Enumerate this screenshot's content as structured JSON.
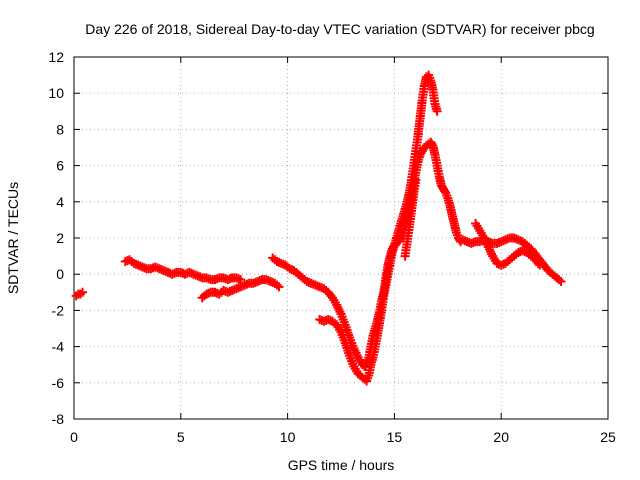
{
  "chart_data": {
    "type": "scatter",
    "title": "Day 226 of 2018, Sidereal Day-to-day VTEC variation (SDTVAR) for receiver pbcg",
    "xlabel": "GPS time / hours",
    "ylabel": "SDTVAR / TECUs",
    "xlim": [
      0,
      25
    ],
    "ylim": [
      -8,
      12
    ],
    "xticks": [
      "0",
      "5",
      "10",
      "15",
      "20",
      "25"
    ],
    "yticks": [
      "-8",
      "-6",
      "-4",
      "-2",
      "0",
      "2",
      "4",
      "6",
      "8",
      "10",
      "12"
    ],
    "grid": true,
    "marker": "plus",
    "series": [
      {
        "name": "pbcg",
        "color": "#ff0000",
        "segments": [
          [
            [
              0.1,
              -1.2
            ],
            [
              0.2,
              -1.1
            ],
            [
              0.3,
              -1.1
            ],
            [
              0.4,
              -1.0
            ]
          ],
          [
            [
              2.4,
              0.7
            ],
            [
              2.6,
              0.8
            ],
            [
              2.8,
              0.6
            ],
            [
              3.0,
              0.5
            ],
            [
              3.2,
              0.4
            ],
            [
              3.4,
              0.3
            ],
            [
              3.6,
              0.3
            ],
            [
              3.8,
              0.4
            ],
            [
              4.0,
              0.3
            ],
            [
              4.2,
              0.2
            ],
            [
              4.4,
              0.1
            ],
            [
              4.6,
              0.0
            ],
            [
              4.8,
              0.1
            ],
            [
              5.0,
              0.1
            ],
            [
              5.2,
              0.0
            ],
            [
              5.4,
              0.1
            ],
            [
              5.6,
              0.0
            ],
            [
              5.8,
              -0.1
            ],
            [
              6.0,
              -0.2
            ],
            [
              6.2,
              -0.2
            ],
            [
              6.4,
              -0.3
            ],
            [
              6.6,
              -0.3
            ],
            [
              6.8,
              -0.2
            ],
            [
              7.0,
              -0.2
            ],
            [
              7.2,
              -0.3
            ],
            [
              7.4,
              -0.2
            ],
            [
              7.6,
              -0.2
            ],
            [
              7.8,
              -0.3
            ]
          ],
          [
            [
              6.0,
              -1.3
            ],
            [
              6.2,
              -1.1
            ],
            [
              6.4,
              -1.0
            ],
            [
              6.6,
              -1.0
            ],
            [
              6.8,
              -1.1
            ],
            [
              7.0,
              -0.9
            ],
            [
              7.2,
              -1.0
            ],
            [
              7.4,
              -0.9
            ],
            [
              7.6,
              -0.8
            ],
            [
              7.8,
              -0.7
            ],
            [
              8.0,
              -0.6
            ],
            [
              8.2,
              -0.5
            ],
            [
              8.4,
              -0.5
            ],
            [
              8.6,
              -0.4
            ],
            [
              8.8,
              -0.3
            ],
            [
              9.0,
              -0.3
            ],
            [
              9.2,
              -0.4
            ],
            [
              9.4,
              -0.5
            ],
            [
              9.6,
              -0.7
            ]
          ],
          [
            [
              9.3,
              0.9
            ],
            [
              9.5,
              0.7
            ],
            [
              9.7,
              0.6
            ],
            [
              9.9,
              0.5
            ],
            [
              10.1,
              0.3
            ],
            [
              10.3,
              0.2
            ],
            [
              10.5,
              0.0
            ],
            [
              10.7,
              -0.2
            ],
            [
              10.9,
              -0.4
            ],
            [
              11.1,
              -0.5
            ],
            [
              11.3,
              -0.6
            ],
            [
              11.5,
              -0.7
            ],
            [
              11.7,
              -0.8
            ],
            [
              11.9,
              -1.0
            ],
            [
              12.1,
              -1.3
            ],
            [
              12.3,
              -1.7
            ],
            [
              12.5,
              -2.2
            ],
            [
              12.7,
              -2.8
            ],
            [
              12.9,
              -3.5
            ],
            [
              13.1,
              -4.1
            ],
            [
              13.3,
              -4.6
            ],
            [
              13.5,
              -5.0
            ],
            [
              13.6,
              -5.1
            ],
            [
              13.7,
              -4.9
            ],
            [
              13.8,
              -4.6
            ],
            [
              13.9,
              -4.0
            ],
            [
              14.0,
              -3.4
            ],
            [
              14.1,
              -3.0
            ],
            [
              14.2,
              -2.6
            ],
            [
              14.3,
              -2.1
            ],
            [
              14.4,
              -1.5
            ],
            [
              14.5,
              -1.0
            ],
            [
              14.6,
              -0.2
            ],
            [
              14.7,
              0.5
            ],
            [
              14.8,
              1.0
            ],
            [
              14.9,
              1.4
            ],
            [
              15.0,
              1.6
            ],
            [
              15.1,
              1.7
            ],
            [
              15.2,
              1.8
            ],
            [
              15.3,
              2.0
            ],
            [
              15.4,
              2.3
            ],
            [
              15.5,
              2.6
            ],
            [
              15.6,
              3.0
            ],
            [
              15.7,
              3.5
            ],
            [
              15.8,
              4.2
            ],
            [
              15.9,
              5.0
            ],
            [
              16.0,
              5.6
            ],
            [
              16.1,
              6.2
            ],
            [
              16.2,
              6.6
            ],
            [
              16.3,
              6.8
            ],
            [
              16.4,
              7.0
            ],
            [
              16.5,
              7.1
            ],
            [
              16.6,
              7.2
            ],
            [
              16.7,
              7.3
            ],
            [
              16.8,
              7.1
            ],
            [
              16.9,
              6.6
            ],
            [
              17.0,
              6.0
            ],
            [
              17.1,
              5.4
            ],
            [
              17.2,
              4.9
            ],
            [
              17.3,
              4.7
            ],
            [
              17.4,
              4.5
            ],
            [
              17.5,
              4.2
            ],
            [
              17.6,
              3.8
            ],
            [
              17.7,
              3.3
            ],
            [
              17.8,
              2.8
            ],
            [
              17.9,
              2.3
            ],
            [
              18.0,
              2.0
            ],
            [
              18.1,
              1.8
            ],
            [
              18.2,
              1.9
            ],
            [
              18.4,
              1.8
            ],
            [
              18.6,
              1.7
            ],
            [
              18.8,
              1.8
            ],
            [
              19.0,
              1.8
            ],
            [
              19.2,
              1.9
            ],
            [
              19.4,
              1.8
            ],
            [
              19.6,
              1.7
            ],
            [
              19.8,
              1.7
            ],
            [
              20.0,
              1.8
            ],
            [
              20.2,
              1.9
            ],
            [
              20.4,
              2.0
            ],
            [
              20.6,
              2.0
            ],
            [
              20.8,
              1.9
            ],
            [
              21.0,
              1.8
            ],
            [
              21.2,
              1.6
            ],
            [
              21.4,
              1.4
            ],
            [
              21.6,
              1.1
            ],
            [
              21.8,
              0.8
            ],
            [
              22.0,
              0.5
            ],
            [
              22.2,
              0.2
            ],
            [
              22.4,
              0.0
            ],
            [
              22.6,
              -0.2
            ],
            [
              22.8,
              -0.4
            ]
          ],
          [
            [
              11.5,
              -2.5
            ],
            [
              11.7,
              -2.6
            ],
            [
              11.9,
              -2.5
            ],
            [
              12.1,
              -2.6
            ],
            [
              12.3,
              -2.8
            ],
            [
              12.5,
              -3.2
            ],
            [
              12.7,
              -3.8
            ],
            [
              12.9,
              -4.5
            ],
            [
              13.1,
              -5.1
            ],
            [
              13.3,
              -5.5
            ],
            [
              13.5,
              -5.7
            ],
            [
              13.7,
              -5.9
            ],
            [
              13.8,
              -5.6
            ],
            [
              13.9,
              -5.0
            ],
            [
              14.0,
              -4.6
            ],
            [
              14.1,
              -4.0
            ],
            [
              14.2,
              -3.4
            ],
            [
              14.3,
              -2.7
            ],
            [
              14.4,
              -2.0
            ],
            [
              14.5,
              -1.2
            ],
            [
              14.6,
              -0.6
            ],
            [
              14.7,
              0.0
            ],
            [
              14.8,
              0.6
            ],
            [
              14.9,
              1.2
            ],
            [
              15.0,
              1.6
            ],
            [
              15.1,
              2.0
            ],
            [
              15.2,
              2.4
            ],
            [
              15.3,
              2.8
            ],
            [
              15.4,
              3.2
            ],
            [
              15.5,
              3.6
            ],
            [
              15.6,
              4.0
            ],
            [
              15.7,
              4.5
            ],
            [
              15.8,
              5.2
            ],
            [
              15.9,
              6.0
            ],
            [
              16.0,
              6.8
            ],
            [
              16.1,
              7.6
            ],
            [
              16.2,
              8.6
            ],
            [
              16.3,
              9.6
            ],
            [
              16.4,
              10.4
            ],
            [
              16.5,
              10.9
            ],
            [
              16.6,
              11.0
            ],
            [
              16.7,
              10.7
            ],
            [
              16.8,
              10.2
            ],
            [
              16.9,
              9.4
            ],
            [
              17.0,
              9.0
            ]
          ],
          [
            [
              15.5,
              1.0
            ],
            [
              15.6,
              1.8
            ],
            [
              15.7,
              2.6
            ],
            [
              15.8,
              3.5
            ],
            [
              15.9,
              4.4
            ],
            [
              16.0,
              5.2
            ]
          ],
          [
            [
              18.8,
              2.8
            ],
            [
              19.0,
              2.4
            ],
            [
              19.2,
              2.0
            ],
            [
              19.4,
              1.5
            ],
            [
              19.6,
              1.0
            ],
            [
              19.8,
              0.6
            ],
            [
              20.0,
              0.5
            ],
            [
              20.2,
              0.6
            ],
            [
              20.4,
              0.8
            ],
            [
              20.6,
              1.0
            ],
            [
              20.8,
              1.2
            ],
            [
              21.0,
              1.3
            ],
            [
              21.2,
              1.2
            ],
            [
              21.4,
              1.0
            ],
            [
              21.6,
              0.8
            ],
            [
              21.8,
              0.5
            ]
          ]
        ]
      }
    ]
  }
}
